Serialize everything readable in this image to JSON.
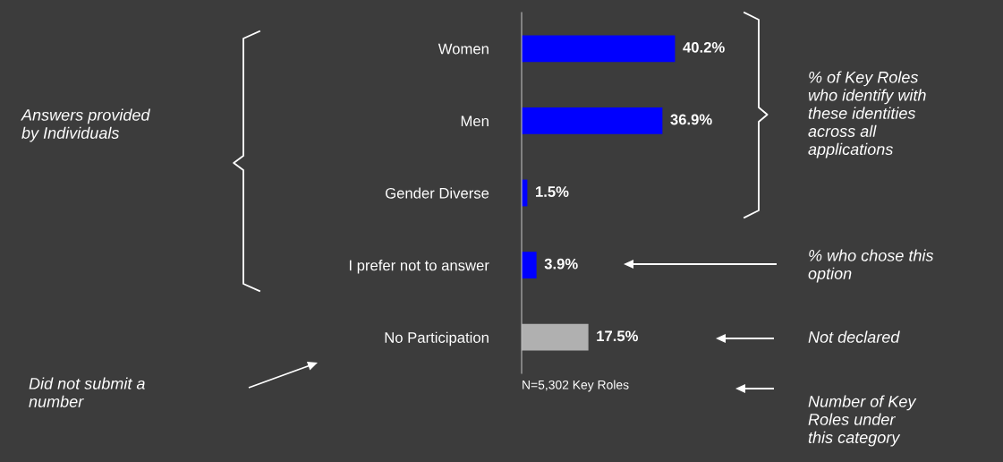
{
  "chart_data": {
    "type": "bar",
    "orientation": "horizontal",
    "categories": [
      "Women",
      "Men",
      "Gender Diverse",
      "I prefer not to answer",
      "No Participation"
    ],
    "values": [
      40.2,
      36.9,
      1.5,
      3.9,
      17.5
    ],
    "colors": [
      "#0000ff",
      "#0000ff",
      "#0000ff",
      "#0000ff",
      "#b0b0b0"
    ],
    "value_labels": [
      "40.2%",
      "36.9%",
      "1.5%",
      "3.9%",
      "17.5%"
    ],
    "annotations": [
      "Answers provided\nby Individuals",
      "% of Key Roles\nwho identify with\nthese identities\nacross all\napplications",
      "% who chose this\noption",
      "Not declared",
      "Number of Key\nRoles under\nthis category",
      "Did not submit a\nnumber",
      "N=5,302 Key Roles"
    ],
    "grid": false,
    "legend": false
  }
}
